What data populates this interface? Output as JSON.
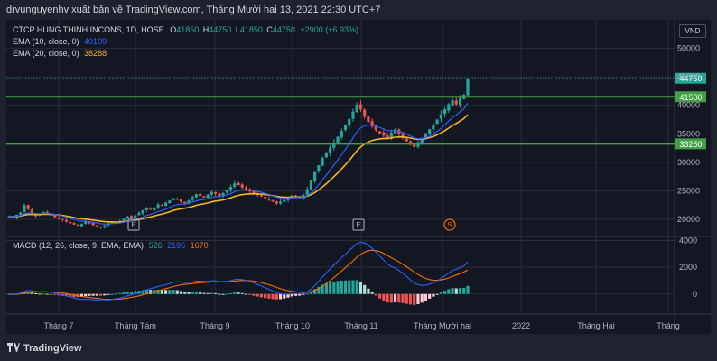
{
  "header": {
    "publisher_text": "drvunguyenhv xuất bản về TradingView.com, Tháng Mười hai 13, 2021 22:30 UTC+7"
  },
  "legend": {
    "symbol": "CTCP HUNG THINH INCONS, 1D, HOSE",
    "ohlc": {
      "o_label": "O",
      "o": "41850",
      "h_label": "H",
      "h": "44750",
      "l_label": "L",
      "l": "41850",
      "c_label": "C",
      "c": "44750",
      "change": "+2900 (+6.93%)"
    },
    "ema10": {
      "label": "EMA (10, close, 0)",
      "value": "40109"
    },
    "ema20": {
      "label": "EMA (20, close, 0)",
      "value": "38288"
    },
    "macd": {
      "label": "MACD (12, 26, close, 9, EMA, EMA)",
      "hist": "526",
      "macd": "2196",
      "signal": "1670"
    }
  },
  "currency_button": "VND",
  "branding": "TradingView",
  "colors": {
    "up": "#26a69a",
    "down": "#ef5350",
    "ema10": "#2962ff",
    "ema20": "#f9b325",
    "level": "#43a047",
    "macd": "#2962ff",
    "signal": "#ff6d00",
    "last_price": "#26a69a"
  },
  "chart_data": [
    {
      "type": "candlestick",
      "y_axis_ticks": [
        "50000",
        "45000",
        "40000",
        "35000",
        "30000",
        "25000",
        "20000"
      ],
      "x_axis_ticks": [
        "Tháng 7",
        "Tháng Tám",
        "Tháng 9",
        "Tháng 10",
        "Tháng 11",
        "Tháng Mười hai",
        "2022",
        "Tháng Hai",
        "Tháng"
      ],
      "ylim": [
        17000,
        55000
      ],
      "last_price": "44750",
      "horizontal_levels": [
        "41500",
        "33250"
      ],
      "markers": [
        {
          "label": "E",
          "kind": "earnings"
        },
        {
          "label": "E",
          "kind": "earnings"
        },
        {
          "label": "S",
          "kind": "split"
        }
      ],
      "series_close": [
        20500,
        20300,
        20800,
        21200,
        22500,
        21800,
        21000,
        20600,
        20900,
        21300,
        21000,
        20700,
        20400,
        20100,
        19900,
        19600,
        19300,
        19100,
        18900,
        19200,
        19600,
        19300,
        19000,
        18800,
        18600,
        18900,
        19300,
        19600,
        19400,
        19700,
        20100,
        20500,
        20300,
        20700,
        21100,
        21600,
        21900,
        21700,
        22100,
        22600,
        22400,
        22900,
        23300,
        23700,
        23500,
        23100,
        22800,
        23300,
        23900,
        24400,
        24100,
        23800,
        24300,
        24800,
        24500,
        24100,
        24600,
        25100,
        25700,
        26300,
        26000,
        25600,
        25300,
        24900,
        24600,
        24300,
        24000,
        23700,
        23400,
        23100,
        22800,
        23100,
        23400,
        23800,
        24200,
        24000,
        23700,
        24300,
        25300,
        26800,
        28300,
        29500,
        30800,
        31600,
        32600,
        33500,
        34500,
        35500,
        36500,
        37600,
        38900,
        40100,
        39300,
        38000,
        37100,
        36300,
        35600,
        35100,
        34700,
        34300,
        35200,
        35800,
        34900,
        34300,
        33700,
        33100,
        32700,
        33500,
        34300,
        35100,
        35800,
        36600,
        37500,
        38400,
        39300,
        40200,
        40900,
        40200,
        41300,
        41850,
        44750
      ]
    },
    {
      "type": "bar",
      "name": "MACD",
      "y_axis_ticks": [
        "4000",
        "2000",
        "0"
      ],
      "ylim": [
        -1500,
        4300
      ],
      "last_values": {
        "histogram": "526",
        "macd": "2196",
        "signal": "1670"
      }
    }
  ]
}
